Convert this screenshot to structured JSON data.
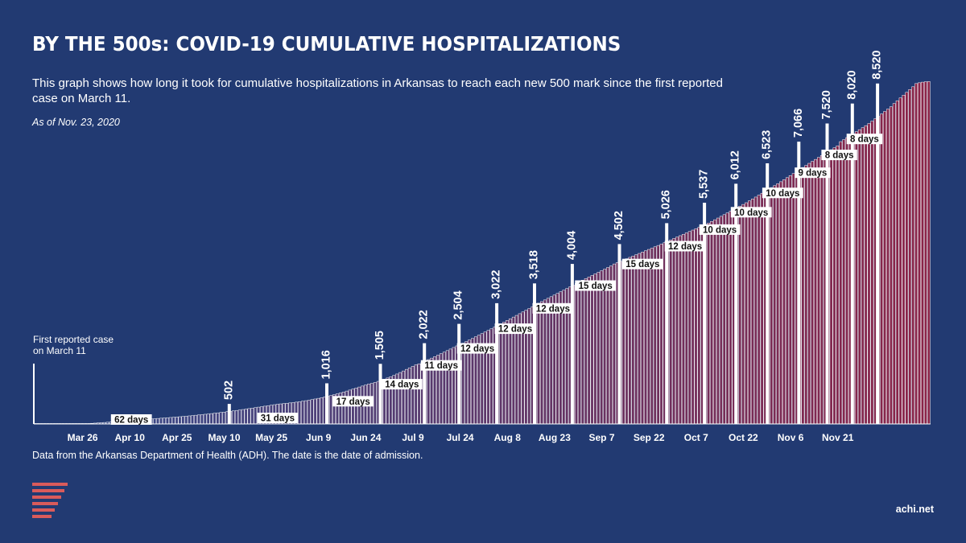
{
  "title": "BY THE 500s: COVID-19 CUMULATIVE HOSPITALIZATIONS",
  "subtitle": "This graph shows how long it took for cumulative hospitalizations in Arkansas to reach each new 500 mark since the first reported case on March 11.",
  "as_of": "As of Nov. 23, 2020",
  "source_note": "Data from the Arkansas Department of Health (ADH). The date is the date of admission.",
  "credit": "achi.net",
  "logo": "ACHI logo",
  "colors": {
    "background": "#223a72",
    "bar_start": "#2f4a8c",
    "bar_end": "#8b2448",
    "accent": "#d95b5b"
  },
  "chart_data": {
    "type": "bar",
    "x_range": [
      "Mar 11",
      "Nov 23"
    ],
    "x_tick_labels": [
      "Mar 26",
      "Apr 10",
      "Apr 25",
      "May 10",
      "May 25",
      "Jun 9",
      "Jun 24",
      "Jul 9",
      "Jul 24",
      "Aug 8",
      "Aug 23",
      "Sep 7",
      "Sep 22",
      "Oct 7",
      "Oct 22",
      "Nov 6",
      "Nov 21"
    ],
    "x_tick_offsets_days": [
      15,
      30,
      45,
      60,
      75,
      90,
      105,
      120,
      135,
      150,
      165,
      180,
      195,
      210,
      225,
      240,
      255
    ],
    "ylim": [
      0,
      9000
    ],
    "first_case_annotation": "First reported case on March 11",
    "milestones": [
      {
        "date": "May 12",
        "offset": 62,
        "value": 502,
        "label": "502"
      },
      {
        "date": "Jun 12",
        "offset": 93,
        "value": 1016,
        "label": "1,016"
      },
      {
        "date": "Jun 29",
        "offset": 110,
        "value": 1505,
        "label": "1,505"
      },
      {
        "date": "Jul 13",
        "offset": 124,
        "value": 2022,
        "label": "2,022"
      },
      {
        "date": "Jul 24",
        "offset": 135,
        "value": 2504,
        "label": "2,504"
      },
      {
        "date": "Aug 5",
        "offset": 147,
        "value": 3022,
        "label": "3,022"
      },
      {
        "date": "Aug 17",
        "offset": 159,
        "value": 3518,
        "label": "3,518"
      },
      {
        "date": "Aug 29",
        "offset": 171,
        "value": 4004,
        "label": "4,004"
      },
      {
        "date": "Sep 13",
        "offset": 186,
        "value": 4502,
        "label": "4,502"
      },
      {
        "date": "Sep 28",
        "offset": 201,
        "value": 5026,
        "label": "5,026"
      },
      {
        "date": "Oct 10",
        "offset": 213,
        "value": 5537,
        "label": "5,537"
      },
      {
        "date": "Oct 20",
        "offset": 223,
        "value": 6012,
        "label": "6,012"
      },
      {
        "date": "Oct 30",
        "offset": 233,
        "value": 6523,
        "label": "6,523"
      },
      {
        "date": "Nov 9",
        "offset": 243,
        "value": 7066,
        "label": "7,066"
      },
      {
        "date": "Nov 18",
        "offset": 252,
        "value": 7520,
        "label": "7,520"
      },
      {
        "date": "Nov 26",
        "offset": 260,
        "value": 8020,
        "label": "8,020"
      },
      {
        "date": "Dec 4",
        "offset": 268,
        "value": 8520,
        "label": "8,520"
      }
    ],
    "interval_labels": [
      "62 days",
      "31 days",
      "17 days",
      "14 days",
      "11 days",
      "12 days",
      "12 days",
      "12 days",
      "15 days",
      "15 days",
      "12 days",
      "10 days",
      "10 days",
      "10 days",
      "9 days",
      "8 days",
      "8 days"
    ],
    "series": [
      {
        "values": [
          0,
          0,
          0,
          0,
          0,
          0,
          0,
          0,
          0,
          0,
          0,
          0,
          0,
          0,
          0,
          3,
          7,
          11,
          16,
          21,
          27,
          32,
          37,
          43,
          48,
          54,
          60,
          66,
          72,
          78,
          84,
          90,
          96,
          102,
          108,
          114,
          120,
          126,
          132,
          138,
          144,
          150,
          156,
          162,
          168,
          174,
          181,
          188,
          195,
          202,
          210,
          218,
          226,
          234,
          242,
          250,
          259,
          268,
          277,
          287,
          297,
          307,
          317,
          327,
          338,
          349,
          361,
          373,
          385,
          397,
          409,
          421,
          433,
          445,
          457,
          469,
          482,
          495,
          502,
          510,
          518,
          527,
          536,
          546,
          557,
          569,
          582,
          596,
          610,
          625,
          641,
          658,
          676,
          694,
          713,
          733,
          754,
          776,
          799,
          823,
          848,
          874,
          899,
          924,
          949,
          974,
          999,
          1016,
          1040,
          1066,
          1093,
          1121,
          1151,
          1182,
          1215,
          1250,
          1287,
          1326,
          1366,
          1405,
          1443,
          1480,
          1505,
          1540,
          1575,
          1611,
          1648,
          1685,
          1722,
          1760,
          1798,
          1836,
          1875,
          1914,
          1953,
          1990,
          2022,
          2061,
          2101,
          2141,
          2182,
          2222,
          2262,
          2302,
          2342,
          2382,
          2422,
          2463,
          2504,
          2547,
          2590,
          2632,
          2675,
          2717,
          2760,
          2803,
          2845,
          2888,
          2930,
          2973,
          3022,
          3063,
          3104,
          3145,
          3185,
          3226,
          3267,
          3308,
          3349,
          3389,
          3430,
          3471,
          3518,
          3558,
          3598,
          3638,
          3677,
          3717,
          3757,
          3796,
          3836,
          3875,
          3915,
          3955,
          4004,
          4037,
          4070,
          4103,
          4136,
          4169,
          4202,
          4235,
          4268,
          4302,
          4335,
          4368,
          4401,
          4434,
          4467,
          4502,
          4537,
          4572,
          4607,
          4642,
          4677,
          4712,
          4747,
          4782,
          4817,
          4852,
          4887,
          4922,
          4957,
          4992,
          5026,
          5069,
          5111,
          5154,
          5197,
          5239,
          5282,
          5324,
          5367,
          5409,
          5452,
          5494,
          5537,
          5584,
          5632,
          5679,
          5727,
          5774,
          5822,
          5869,
          5917,
          5964,
          6012,
          6063,
          6114,
          6165,
          6216,
          6267,
          6318,
          6369,
          6420,
          6471,
          6523,
          6573,
          6621,
          6670,
          6718,
          6767,
          6815,
          6864,
          6912,
          6961,
          7066,
          7116,
          7166,
          7216,
          7266,
          7316,
          7366,
          7416,
          7466,
          7520,
          7580,
          7640,
          7700,
          7760,
          7820,
          7880,
          7940,
          8020,
          8090,
          8160,
          8230,
          8300,
          8370,
          8440,
          8520,
          8540,
          8555,
          8565,
          8570
        ]
      }
    ]
  }
}
